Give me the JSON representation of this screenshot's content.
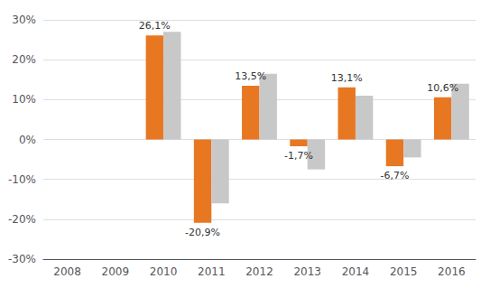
{
  "chart_data": {
    "type": "bar",
    "categories": [
      "2008",
      "2009",
      "2010",
      "2011",
      "2012",
      "2013",
      "2014",
      "2015",
      "2016"
    ],
    "series": [
      {
        "color": "#E87722",
        "values": [
          null,
          null,
          26.1,
          -20.9,
          13.5,
          -1.7,
          13.1,
          -6.7,
          10.6
        ],
        "data_labels": true,
        "value_labels": [
          null,
          null,
          "26,1%",
          "-20,9%",
          "13,5%",
          "-1,7%",
          "13,1%",
          "-6,7%",
          "10,6%"
        ]
      },
      {
        "color": "#C8C8C8",
        "values": [
          null,
          null,
          27.0,
          -16.0,
          16.5,
          -7.5,
          11.0,
          -4.5,
          14.0
        ]
      }
    ],
    "ylim": [
      -30,
      30
    ],
    "yticks": [
      {
        "value": -30,
        "label": "-30%"
      },
      {
        "value": -20,
        "label": "-20%"
      },
      {
        "value": -10,
        "label": "-10%"
      },
      {
        "value": 0,
        "label": "0%"
      },
      {
        "value": 10,
        "label": "10%"
      },
      {
        "value": 20,
        "label": "20%"
      },
      {
        "value": 30,
        "label": "30%"
      }
    ],
    "grid": true
  }
}
